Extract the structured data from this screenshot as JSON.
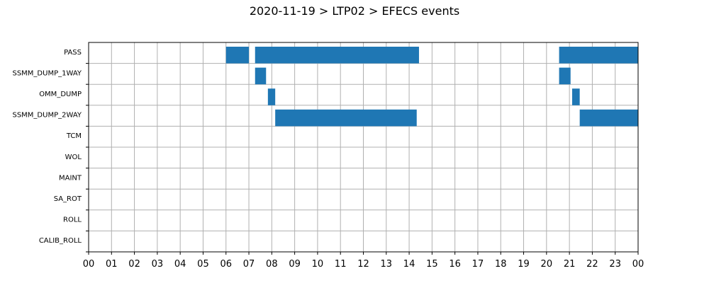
{
  "chart_data": {
    "type": "timeline",
    "title": "2020-11-19 > LTP02 > EFECS events",
    "xlabel": "",
    "ylabel": "",
    "x_range_hours": [
      0,
      24
    ],
    "x_tick_labels": [
      "00",
      "01",
      "02",
      "03",
      "04",
      "05",
      "06",
      "07",
      "08",
      "09",
      "10",
      "11",
      "12",
      "13",
      "14",
      "15",
      "16",
      "17",
      "18",
      "19",
      "20",
      "21",
      "22",
      "23",
      "00"
    ],
    "categories": [
      "PASS",
      "SSMM_DUMP_1WAY",
      "OMM_DUMP",
      "SSMM_DUMP_2WAY",
      "TCM",
      "WOL",
      "MAINT",
      "SA_ROT",
      "ROLL",
      "CALIB_ROLL"
    ],
    "grid": true,
    "bar_color": "#1f77b4",
    "events": [
      {
        "category": "PASS",
        "start": 6.0,
        "end": 7.0
      },
      {
        "category": "PASS",
        "start": 7.27,
        "end": 14.43
      },
      {
        "category": "PASS",
        "start": 20.55,
        "end": 24.0
      },
      {
        "category": "SSMM_DUMP_1WAY",
        "start": 7.27,
        "end": 7.75
      },
      {
        "category": "SSMM_DUMP_1WAY",
        "start": 20.55,
        "end": 21.05
      },
      {
        "category": "OMM_DUMP",
        "start": 7.83,
        "end": 8.15
      },
      {
        "category": "OMM_DUMP",
        "start": 21.12,
        "end": 21.45
      },
      {
        "category": "SSMM_DUMP_2WAY",
        "start": 8.15,
        "end": 14.33
      },
      {
        "category": "SSMM_DUMP_2WAY",
        "start": 21.45,
        "end": 24.0
      }
    ]
  }
}
